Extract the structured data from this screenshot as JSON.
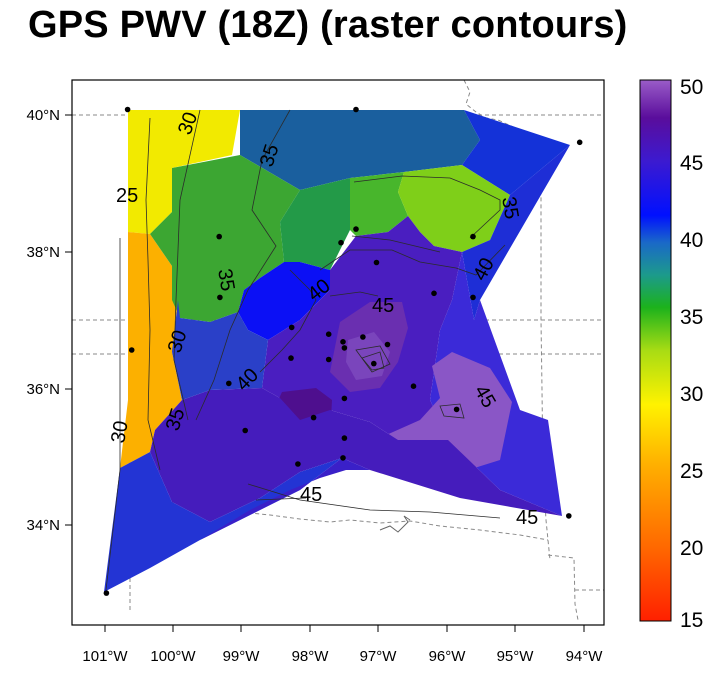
{
  "title": "GPS PWV (18Z) (raster contours)",
  "x_ticks": [
    "101°W",
    "100°W",
    "99°W",
    "98°W",
    "97°W",
    "96°W",
    "95°W",
    "94°W"
  ],
  "y_ticks": [
    "40°N",
    "38°N",
    "36°N",
    "34°N"
  ],
  "colorbar": {
    "labels": [
      "50",
      "45",
      "40",
      "35",
      "30",
      "25",
      "20",
      "15"
    ]
  },
  "contour_labels": [
    "30",
    "35",
    "25",
    "35",
    "35",
    "40",
    "45",
    "40",
    "30",
    "40",
    "35",
    "30",
    "45",
    "45",
    "45"
  ],
  "stations": [
    {
      "lon": -100.67,
      "lat": 40.08
    },
    {
      "lon": -97.33,
      "lat": 40.08
    },
    {
      "lon": -94.06,
      "lat": 39.6
    },
    {
      "lon": -99.33,
      "lat": 38.22
    },
    {
      "lon": -97.55,
      "lat": 38.13
    },
    {
      "lon": -97.33,
      "lat": 38.33
    },
    {
      "lon": -95.62,
      "lat": 38.22
    },
    {
      "lon": -97.03,
      "lat": 37.84
    },
    {
      "lon": -96.19,
      "lat": 37.39
    },
    {
      "lon": -95.62,
      "lat": 37.33
    },
    {
      "lon": -99.32,
      "lat": 37.33
    },
    {
      "lon": -98.27,
      "lat": 36.89
    },
    {
      "lon": -97.73,
      "lat": 36.79
    },
    {
      "lon": -97.23,
      "lat": 36.75
    },
    {
      "lon": -97.52,
      "lat": 36.68
    },
    {
      "lon": -97.5,
      "lat": 36.59
    },
    {
      "lon": -96.87,
      "lat": 36.64
    },
    {
      "lon": -98.28,
      "lat": 36.44
    },
    {
      "lon": -97.73,
      "lat": 36.42
    },
    {
      "lon": -97.07,
      "lat": 36.36
    },
    {
      "lon": -100.61,
      "lat": 36.56
    },
    {
      "lon": -99.19,
      "lat": 36.07
    },
    {
      "lon": -96.49,
      "lat": 36.03
    },
    {
      "lon": -97.5,
      "lat": 35.85
    },
    {
      "lon": -95.86,
      "lat": 35.69
    },
    {
      "lon": -97.95,
      "lat": 35.57
    },
    {
      "lon": -98.95,
      "lat": 35.38
    },
    {
      "lon": -97.5,
      "lat": 35.27
    },
    {
      "lon": -97.52,
      "lat": 34.98
    },
    {
      "lon": -98.18,
      "lat": 34.89
    },
    {
      "lon": -94.22,
      "lat": 34.13
    },
    {
      "lon": -100.98,
      "lat": 33.0
    }
  ]
}
